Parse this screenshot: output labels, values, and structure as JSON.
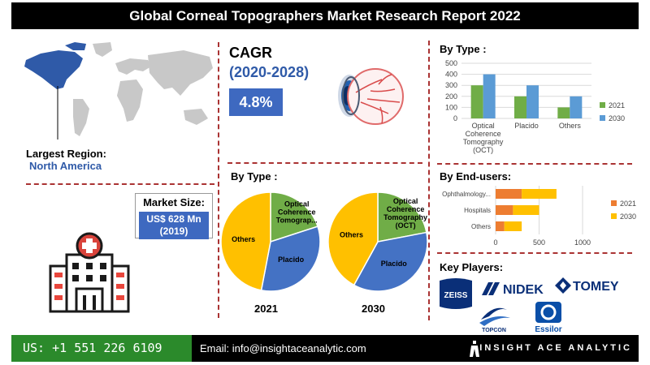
{
  "header": {
    "title": "Global Corneal Topographers Market Research Report 2022"
  },
  "region": {
    "label": "Largest Region:",
    "value": "North America"
  },
  "cagr": {
    "title": "CAGR",
    "range": "(2020-2028)",
    "value": "4.8%"
  },
  "market_size": {
    "label": "Market Size:",
    "value_line1": "US$ 628 Mn",
    "value_line2": "(2019)"
  },
  "by_type_pies": {
    "title": "By Type :"
  },
  "by_type_bars": {
    "title": "By Type :"
  },
  "by_end_users": {
    "title": "By End-users:"
  },
  "key_players": {
    "title": "Key Players:",
    "logos": [
      "ZEISS",
      "NIDEK",
      "TOMEY",
      "TOPCON",
      "Essilor"
    ]
  },
  "footer": {
    "phone": "US: +1 551 226 6109",
    "email": "Email: info@insightaceanalytic.com",
    "brand": "INSIGHT ACE ANALYTIC"
  },
  "colors": {
    "blue": "#5b9bd5",
    "green": "#70ad47",
    "orange": "#ed7d31",
    "yellow": "#ffc000",
    "pie_blue": "#4472c4"
  },
  "chart_data": [
    {
      "type": "bar",
      "title": "By Type :",
      "categories": [
        "Optical Coherence Tomography (OCT)",
        "Placido",
        "Others"
      ],
      "series": [
        {
          "name": "2021",
          "values": [
            300,
            200,
            100
          ]
        },
        {
          "name": "2030",
          "values": [
            400,
            300,
            200
          ]
        }
      ],
      "ylim": [
        0,
        500
      ],
      "yticks": [
        0,
        100,
        200,
        300,
        400,
        500
      ],
      "legend": "right",
      "grid": true
    },
    {
      "type": "bar",
      "orientation": "horizontal",
      "stacked": true,
      "title": "By End-users:",
      "categories": [
        "Ophthalmology...",
        "Hospitals",
        "Others"
      ],
      "series": [
        {
          "name": "2021",
          "values": [
            300,
            200,
            100
          ]
        },
        {
          "name": "2030",
          "values": [
            400,
            300,
            200
          ]
        }
      ],
      "xlim": [
        0,
        1000
      ],
      "xticks": [
        0,
        500,
        1000
      ],
      "legend": "right",
      "grid": true
    },
    {
      "type": "pie",
      "caption": "2021",
      "slices": [
        {
          "label": "Optical Coherence Tomograp...",
          "value": 20
        },
        {
          "label": "Placido",
          "value": 33
        },
        {
          "label": "Others",
          "value": 47
        }
      ]
    },
    {
      "type": "pie",
      "caption": "2030",
      "slices": [
        {
          "label": "Optical Coherence Tomography (OCT)",
          "value": 22
        },
        {
          "label": "Placido",
          "value": 36
        },
        {
          "label": "Others",
          "value": 42
        }
      ]
    }
  ]
}
